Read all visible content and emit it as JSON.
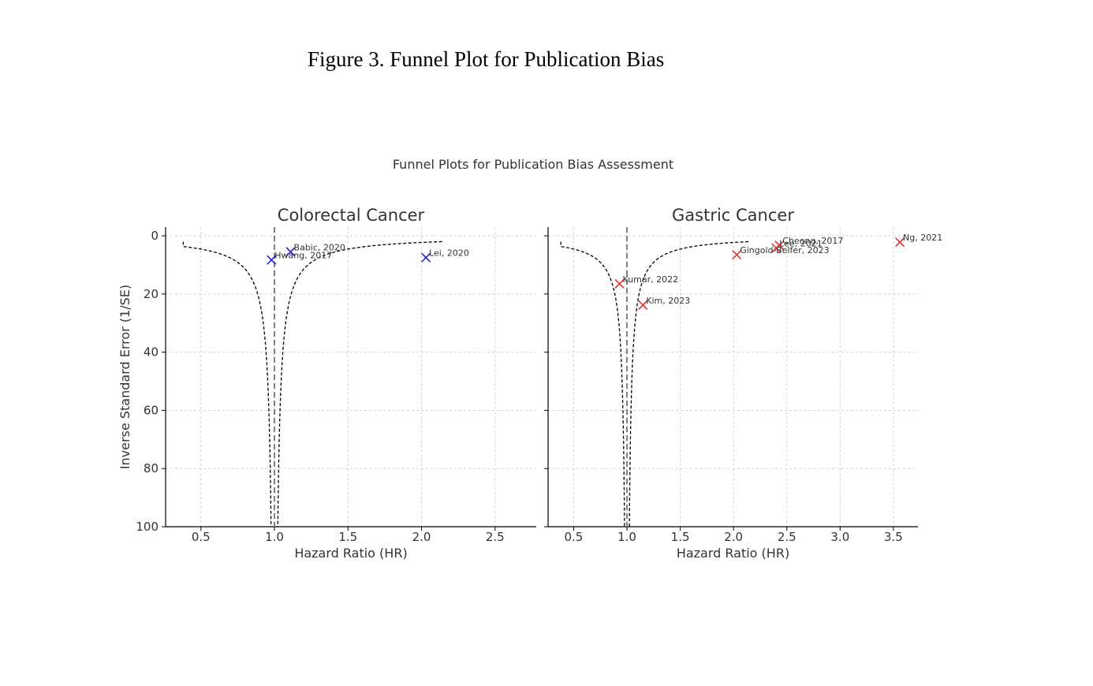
{
  "figure_title": "Figure 3. Funnel Plot for Publication Bias",
  "chart_data": {
    "suptitle": "Funnel Plots for Publication Bias Assessment",
    "shared_ylabel": "Inverse Standard Error (1/SE)",
    "y_inverted": true,
    "colors": {
      "funnel": "#000000",
      "reference": "#808080",
      "grid": "#cccccc"
    },
    "panels": [
      {
        "type": "scatter",
        "title": "Colorectal Cancer",
        "xlabel": "Hazard Ratio (HR)",
        "xlim": [
          0.26,
          2.78
        ],
        "ylim": [
          100,
          -3
        ],
        "xticks": [
          0.5,
          1.0,
          1.5,
          2.0,
          2.5
        ],
        "xtick_labels": [
          "0.5",
          "1.0",
          "1.5",
          "2.0",
          "2.5"
        ],
        "yticks": [
          0,
          20,
          40,
          60,
          80,
          100
        ],
        "ytick_labels": [
          "0",
          "20",
          "40",
          "60",
          "80",
          "100"
        ],
        "reference_hr": 1.0,
        "funnel_x_range": [
          0.38,
          2.66
        ],
        "marker": "x",
        "color": "#2222dd",
        "points": [
          {
            "label": "Babic, 2020",
            "x": 1.11,
            "y": 5.5
          },
          {
            "label": "Hwang, 2017",
            "x": 0.98,
            "y": 8.3
          },
          {
            "label": "Lei, 2020",
            "x": 2.03,
            "y": 7.5
          }
        ]
      },
      {
        "type": "scatter",
        "title": "Gastric Cancer",
        "xlabel": "Hazard Ratio (HR)",
        "xlim": [
          0.26,
          3.73
        ],
        "ylim": [
          100,
          -3
        ],
        "xticks": [
          0.5,
          1.0,
          1.5,
          2.0,
          2.5,
          3.0,
          3.5
        ],
        "xtick_labels": [
          "0.5",
          "1.0",
          "1.5",
          "2.0",
          "2.5",
          "3.0",
          "3.5"
        ],
        "yticks": [
          0,
          20,
          40,
          60,
          80,
          100
        ],
        "ytick_labels": [
          "0",
          "20",
          "40",
          "60",
          "80",
          "100"
        ],
        "reference_hr": 1.0,
        "funnel_x_range": [
          0.38,
          2.66
        ],
        "marker": "x",
        "color": "#dd3333",
        "points": [
          {
            "label": "Ng, 2021",
            "x": 3.56,
            "y": 2.2
          },
          {
            "label": "Cheong, 2017",
            "x": 2.43,
            "y": 3.3
          },
          {
            "label": "Lee, 2021",
            "x": 2.4,
            "y": 4.2
          },
          {
            "label": "Gingold-Belfer, 2023",
            "x": 2.03,
            "y": 6.5
          },
          {
            "label": "Kumar, 2022",
            "x": 0.93,
            "y": 16.5
          },
          {
            "label": "Kim, 2023",
            "x": 1.15,
            "y": 23.8
          }
        ]
      }
    ]
  }
}
